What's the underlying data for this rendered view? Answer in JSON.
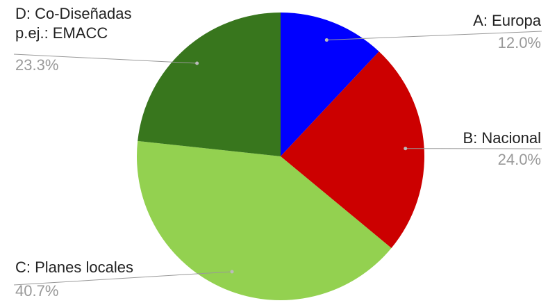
{
  "chart_data": {
    "type": "pie",
    "categories": [
      "A: Europa",
      "B: Nacional",
      "C: Planes locales",
      "D: Co-Diseñadas p.ej.: EMACC"
    ],
    "values": [
      12.0,
      24.0,
      40.7,
      23.3
    ],
    "value_labels": [
      "12.0%",
      "24.0%",
      "40.7%",
      "23.3%"
    ],
    "colors": [
      "#0000ff",
      "#cc0000",
      "#93d150",
      "#38761d"
    ]
  }
}
